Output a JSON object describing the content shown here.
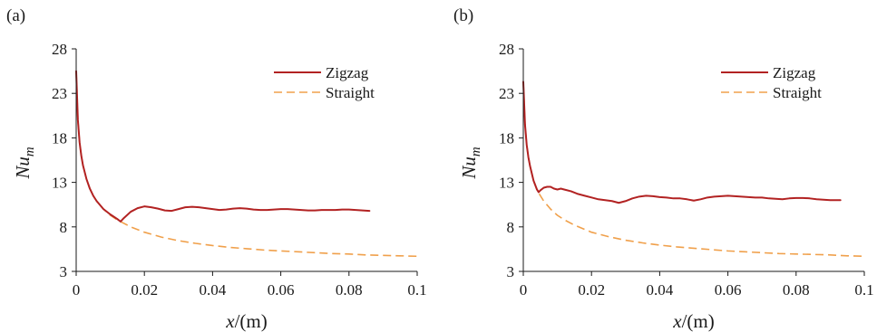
{
  "chart_data": [
    {
      "type": "line",
      "panel_label": "(a)",
      "xlabel_var": "x",
      "xlabel_unit": "/(m)",
      "ylabel_var": "Nu",
      "ylabel_sub": "m",
      "xlim": [
        0,
        0.1
      ],
      "ylim": [
        3,
        28
      ],
      "xticks": [
        0,
        0.02,
        0.04,
        0.06,
        0.08,
        0.1
      ],
      "xtick_labels": [
        "0",
        "0.02",
        "0.04",
        "0.06",
        "0.08",
        "0.1"
      ],
      "yticks": [
        3,
        8,
        13,
        18,
        23,
        28
      ],
      "ytick_labels": [
        "3",
        "8",
        "13",
        "18",
        "23",
        "28"
      ],
      "grid": false,
      "legend_position": "top-right",
      "series": [
        {
          "name": "Zigzag",
          "color": "#b22222",
          "dash": "solid",
          "x": [
            0,
            0.0005,
            0.001,
            0.0015,
            0.002,
            0.003,
            0.004,
            0.005,
            0.006,
            0.008,
            0.01,
            0.012,
            0.013,
            0.014,
            0.016,
            0.018,
            0.02,
            0.022,
            0.024,
            0.026,
            0.028,
            0.03,
            0.032,
            0.034,
            0.036,
            0.038,
            0.04,
            0.042,
            0.044,
            0.046,
            0.048,
            0.05,
            0.052,
            0.054,
            0.056,
            0.058,
            0.06,
            0.062,
            0.064,
            0.066,
            0.068,
            0.07,
            0.072,
            0.074,
            0.076,
            0.078,
            0.08,
            0.082,
            0.084,
            0.086
          ],
          "y": [
            25.5,
            20.0,
            17.5,
            16.0,
            14.9,
            13.4,
            12.3,
            11.5,
            10.9,
            10.0,
            9.4,
            8.9,
            8.6,
            9.0,
            9.7,
            10.1,
            10.3,
            10.2,
            10.05,
            9.85,
            9.8,
            10.0,
            10.2,
            10.25,
            10.2,
            10.1,
            10.0,
            9.9,
            9.95,
            10.05,
            10.1,
            10.05,
            9.95,
            9.9,
            9.9,
            9.95,
            10.0,
            10.0,
            9.95,
            9.9,
            9.85,
            9.85,
            9.9,
            9.9,
            9.9,
            9.95,
            9.95,
            9.9,
            9.85,
            9.8
          ]
        },
        {
          "name": "Straight",
          "color": "#f0a04b",
          "dash": "dashed",
          "x": [
            0,
            0.0005,
            0.001,
            0.0015,
            0.002,
            0.003,
            0.004,
            0.005,
            0.006,
            0.008,
            0.01,
            0.012,
            0.013,
            0.016,
            0.02,
            0.025,
            0.03,
            0.035,
            0.04,
            0.045,
            0.05,
            0.055,
            0.06,
            0.065,
            0.07,
            0.075,
            0.08,
            0.085,
            0.09,
            0.095,
            0.1
          ],
          "y": [
            25.5,
            20.0,
            17.5,
            16.0,
            14.9,
            13.4,
            12.3,
            11.5,
            10.9,
            10.0,
            9.3,
            8.8,
            8.6,
            8.0,
            7.4,
            6.85,
            6.45,
            6.15,
            5.9,
            5.7,
            5.55,
            5.4,
            5.3,
            5.2,
            5.1,
            5.0,
            4.95,
            4.85,
            4.8,
            4.75,
            4.7
          ]
        }
      ]
    },
    {
      "type": "line",
      "panel_label": "(b)",
      "xlabel_var": "x",
      "xlabel_unit": "/(m)",
      "ylabel_var": "Nu",
      "ylabel_sub": "m",
      "xlim": [
        0,
        0.1
      ],
      "ylim": [
        3,
        28
      ],
      "xticks": [
        0,
        0.02,
        0.04,
        0.06,
        0.08,
        0.1
      ],
      "xtick_labels": [
        "0",
        "0.02",
        "0.04",
        "0.06",
        "0.08",
        "0.1"
      ],
      "yticks": [
        3,
        8,
        13,
        18,
        23,
        28
      ],
      "ytick_labels": [
        "3",
        "8",
        "13",
        "18",
        "23",
        "28"
      ],
      "grid": false,
      "legend_position": "top-right",
      "series": [
        {
          "name": "Zigzag",
          "color": "#b22222",
          "dash": "solid",
          "x": [
            0,
            0.0005,
            0.001,
            0.0015,
            0.002,
            0.003,
            0.004,
            0.0045,
            0.005,
            0.006,
            0.007,
            0.008,
            0.009,
            0.01,
            0.011,
            0.012,
            0.014,
            0.016,
            0.018,
            0.02,
            0.022,
            0.024,
            0.026,
            0.028,
            0.03,
            0.032,
            0.034,
            0.036,
            0.038,
            0.04,
            0.042,
            0.044,
            0.046,
            0.048,
            0.05,
            0.052,
            0.054,
            0.056,
            0.058,
            0.06,
            0.062,
            0.064,
            0.066,
            0.068,
            0.07,
            0.072,
            0.074,
            0.076,
            0.078,
            0.08,
            0.082,
            0.084,
            0.086,
            0.088,
            0.09,
            0.093
          ],
          "y": [
            24.3,
            19.5,
            17.2,
            15.8,
            14.8,
            13.2,
            12.2,
            11.9,
            12.1,
            12.4,
            12.5,
            12.5,
            12.3,
            12.2,
            12.3,
            12.2,
            12.0,
            11.7,
            11.5,
            11.3,
            11.1,
            11.0,
            10.9,
            10.7,
            10.9,
            11.2,
            11.4,
            11.5,
            11.45,
            11.35,
            11.3,
            11.2,
            11.2,
            11.1,
            10.95,
            11.1,
            11.3,
            11.4,
            11.45,
            11.5,
            11.45,
            11.4,
            11.35,
            11.3,
            11.3,
            11.2,
            11.15,
            11.1,
            11.2,
            11.25,
            11.25,
            11.2,
            11.1,
            11.05,
            11.0,
            11.0
          ]
        },
        {
          "name": "Straight",
          "color": "#f0a04b",
          "dash": "dashed",
          "x": [
            0,
            0.0005,
            0.001,
            0.0015,
            0.002,
            0.003,
            0.004,
            0.005,
            0.006,
            0.008,
            0.01,
            0.012,
            0.015,
            0.02,
            0.025,
            0.03,
            0.035,
            0.04,
            0.045,
            0.05,
            0.055,
            0.06,
            0.065,
            0.07,
            0.075,
            0.08,
            0.085,
            0.09,
            0.095,
            0.1
          ],
          "y": [
            24.3,
            19.5,
            17.2,
            15.8,
            14.8,
            13.2,
            12.2,
            11.5,
            10.9,
            10.0,
            9.3,
            8.8,
            8.2,
            7.4,
            6.9,
            6.5,
            6.2,
            5.95,
            5.75,
            5.6,
            5.45,
            5.3,
            5.2,
            5.1,
            5.0,
            4.95,
            4.9,
            4.85,
            4.75,
            4.7
          ]
        }
      ]
    }
  ]
}
